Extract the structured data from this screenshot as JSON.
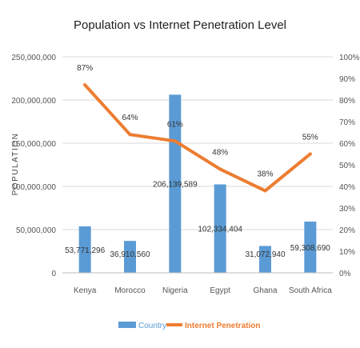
{
  "chart_data": {
    "type": "bar",
    "title": "Population vs Internet Penetration Level",
    "ylabel": "POPULATION",
    "xlabel": "",
    "categories": [
      "Kenya",
      "Morocco",
      "Nigeria",
      "Egypt",
      "Ghana",
      "South Africa"
    ],
    "ylim": [
      0,
      250000000
    ],
    "y2lim": [
      0,
      1
    ],
    "grid": true,
    "legend_position": "bottom",
    "y_ticks": [
      "0",
      "50,000,000",
      "100,000,000",
      "150,000,000",
      "200,000,000",
      "250,000,000"
    ],
    "y2_ticks": [
      "0%",
      "10%",
      "20%",
      "30%",
      "40%",
      "50%",
      "60%",
      "70%",
      "80%",
      "90%",
      "100%"
    ],
    "series": [
      {
        "name": "Country",
        "type": "bar",
        "color": "#5b9bd5",
        "values": [
          53771296,
          36910560,
          206139589,
          102334404,
          31072940,
          59308690
        ],
        "labels": [
          "53,771,296",
          "36,910,560",
          "206,139,589",
          "102,334,404",
          "31,072,940",
          "59,308,690"
        ]
      },
      {
        "name": "Internet Penetration",
        "type": "line",
        "axis": "secondary",
        "color": "#ed7d31",
        "values": [
          0.87,
          0.64,
          0.61,
          0.48,
          0.38,
          0.55
        ],
        "labels": [
          "87%",
          "64%",
          "61%",
          "48%",
          "38%",
          "55%"
        ]
      }
    ]
  }
}
